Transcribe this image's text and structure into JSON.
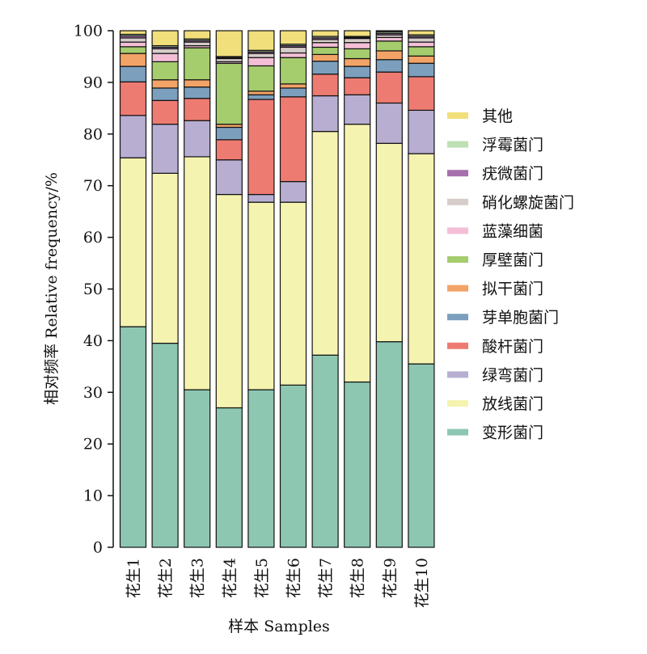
{
  "chart_data": {
    "type": "bar",
    "stacked": true,
    "title": "",
    "xlabel": "样本 Samples",
    "ylabel": "相对频率 Relative frequency/%",
    "ylim": [
      0,
      100
    ],
    "yticks": [
      0,
      10,
      20,
      30,
      40,
      50,
      60,
      70,
      80,
      90,
      100
    ],
    "grid": false,
    "legend_position": "right",
    "categories": [
      "花生1",
      "花生2",
      "花生3",
      "花生4",
      "花生5",
      "花生6",
      "花生7",
      "花生8",
      "花生9",
      "花生10"
    ],
    "series": [
      {
        "name": "变形菌门",
        "color": "#8dc7b2",
        "values": [
          42.7,
          39.5,
          30.5,
          27.0,
          30.5,
          31.4,
          37.2,
          32.0,
          39.8,
          35.5
        ]
      },
      {
        "name": "放线菌门",
        "color": "#f5f3b0",
        "values": [
          32.7,
          32.9,
          45.1,
          41.3,
          36.3,
          35.4,
          43.3,
          49.9,
          38.4,
          40.7
        ]
      },
      {
        "name": "绿弯菌门",
        "color": "#b8aed2",
        "values": [
          8.2,
          9.5,
          7.0,
          6.7,
          1.5,
          4.0,
          6.9,
          5.7,
          7.8,
          8.4
        ]
      },
      {
        "name": "酸杆菌门",
        "color": "#ee7b72",
        "values": [
          6.5,
          4.6,
          4.3,
          3.9,
          18.4,
          16.4,
          4.2,
          3.3,
          6.0,
          6.5
        ]
      },
      {
        "name": "芽单胞菌门",
        "color": "#7c9fbe",
        "values": [
          3.0,
          2.4,
          2.2,
          2.4,
          0.9,
          1.7,
          2.5,
          2.2,
          2.4,
          2.6
        ]
      },
      {
        "name": "拟干菌门",
        "color": "#f2a367",
        "values": [
          2.5,
          1.6,
          1.4,
          0.6,
          0.7,
          0.8,
          1.3,
          1.5,
          1.7,
          1.4
        ]
      },
      {
        "name": "厚壁菌门",
        "color": "#a5cc6d",
        "values": [
          1.3,
          3.5,
          6.2,
          11.8,
          4.9,
          5.1,
          1.4,
          1.9,
          1.9,
          1.8
        ]
      },
      {
        "name": "蓝藻细菌",
        "color": "#f4bfd6",
        "values": [
          0.9,
          1.6,
          0.4,
          0.3,
          1.6,
          0.9,
          0.9,
          1.2,
          0.7,
          0.9
        ]
      },
      {
        "name": "硝化螺旋菌门",
        "color": "#d6cdcb",
        "values": [
          0.8,
          0.9,
          0.7,
          0.6,
          0.8,
          1.1,
          0.6,
          0.8,
          0.5,
          0.8
        ]
      },
      {
        "name": "疣微菌门",
        "color": "#a570ac",
        "values": [
          0.4,
          0.3,
          0.3,
          0.2,
          0.3,
          0.3,
          0.3,
          0.2,
          0.3,
          0.3
        ]
      },
      {
        "name": "浮霉菌门",
        "color": "#bfdfb5",
        "values": [
          0.3,
          0.3,
          0.3,
          0.2,
          0.3,
          0.3,
          0.3,
          0.2,
          0.3,
          0.3
        ]
      },
      {
        "name": "其他",
        "color": "#f1df7c",
        "values": [
          0.7,
          2.9,
          1.6,
          5.0,
          3.8,
          2.6,
          1.1,
          1.1,
          0.2,
          0.8
        ]
      }
    ]
  }
}
